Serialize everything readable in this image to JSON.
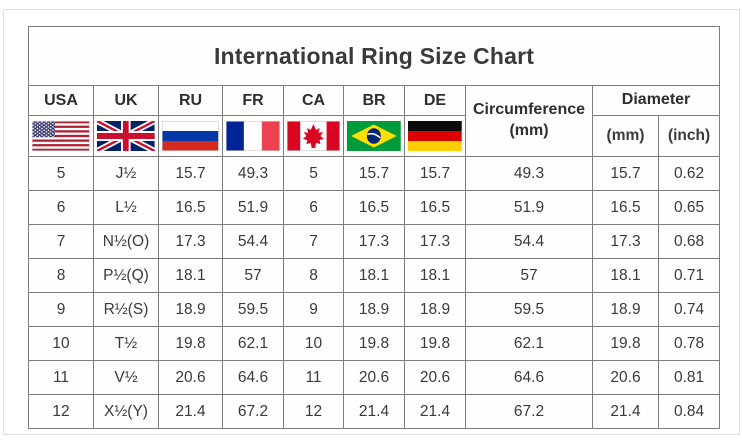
{
  "title": "International Ring Size Chart",
  "columns": [
    {
      "code": "USA",
      "country": "United States"
    },
    {
      "code": "UK",
      "country": "United Kingdom"
    },
    {
      "code": "RU",
      "country": "Russia"
    },
    {
      "code": "FR",
      "country": "France"
    },
    {
      "code": "CA",
      "country": "Canada"
    },
    {
      "code": "BR",
      "country": "Brazil"
    },
    {
      "code": "DE",
      "country": "Germany"
    }
  ],
  "circumference": {
    "label": "Circumference",
    "unit": "(mm)"
  },
  "diameter": {
    "label": "Diameter",
    "units": [
      "(mm)",
      "(inch)"
    ]
  },
  "colors": {
    "border": "#7d7d7d",
    "text": "#3a3a3a",
    "background": "#ffffff"
  },
  "chart_data": {
    "type": "table",
    "title": "International Ring Size Chart",
    "columns": [
      "USA",
      "UK",
      "RU",
      "FR",
      "CA",
      "BR",
      "DE",
      "Circumference (mm)",
      "Diameter (mm)",
      "Diameter (inch)"
    ],
    "rows": [
      [
        "5",
        "J½",
        "15.7",
        "49.3",
        "5",
        "15.7",
        "15.7",
        "49.3",
        "15.7",
        "0.62"
      ],
      [
        "6",
        "L½",
        "16.5",
        "51.9",
        "6",
        "16.5",
        "16.5",
        "51.9",
        "16.5",
        "0.65"
      ],
      [
        "7",
        "N½(O)",
        "17.3",
        "54.4",
        "7",
        "17.3",
        "17.3",
        "54.4",
        "17.3",
        "0.68"
      ],
      [
        "8",
        "P½(Q)",
        "18.1",
        "57",
        "8",
        "18.1",
        "18.1",
        "57",
        "18.1",
        "0.71"
      ],
      [
        "9",
        "R½(S)",
        "18.9",
        "59.5",
        "9",
        "18.9",
        "18.9",
        "59.5",
        "18.9",
        "0.74"
      ],
      [
        "10",
        "T½",
        "19.8",
        "62.1",
        "10",
        "19.8",
        "19.8",
        "62.1",
        "19.8",
        "0.78"
      ],
      [
        "11",
        "V½",
        "20.6",
        "64.6",
        "11",
        "20.6",
        "20.6",
        "64.6",
        "20.6",
        "0.81"
      ],
      [
        "12",
        "X½(Y)",
        "21.4",
        "67.2",
        "12",
        "21.4",
        "21.4",
        "67.2",
        "21.4",
        "0.84"
      ]
    ]
  }
}
